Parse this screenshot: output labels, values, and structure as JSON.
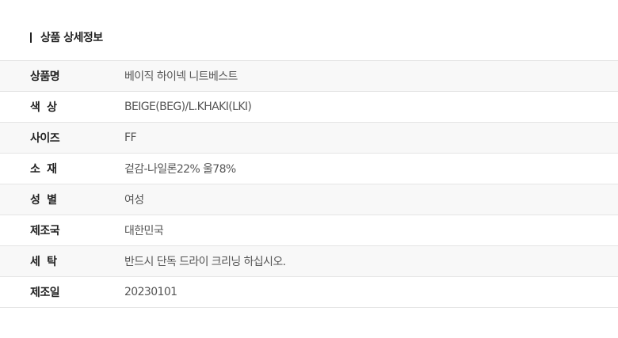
{
  "section_title": "상품 상세정보",
  "rows": [
    {
      "label": "상품명",
      "value": "베이직 하이넥 니트베스트"
    },
    {
      "label": "색  상",
      "value": "BEIGE(BEG)/L.KHAKI(LKI)"
    },
    {
      "label": "사이즈",
      "value": "FF"
    },
    {
      "label": "소  재",
      "value": "겉감-나일론22% 울78%"
    },
    {
      "label": "성  별",
      "value": "여성"
    },
    {
      "label": "제조국",
      "value": "대한민국"
    },
    {
      "label": "세  탁",
      "value": "반드시 단독 드라이 크리닝 하십시오."
    },
    {
      "label": "제조일",
      "value": "20230101"
    }
  ]
}
